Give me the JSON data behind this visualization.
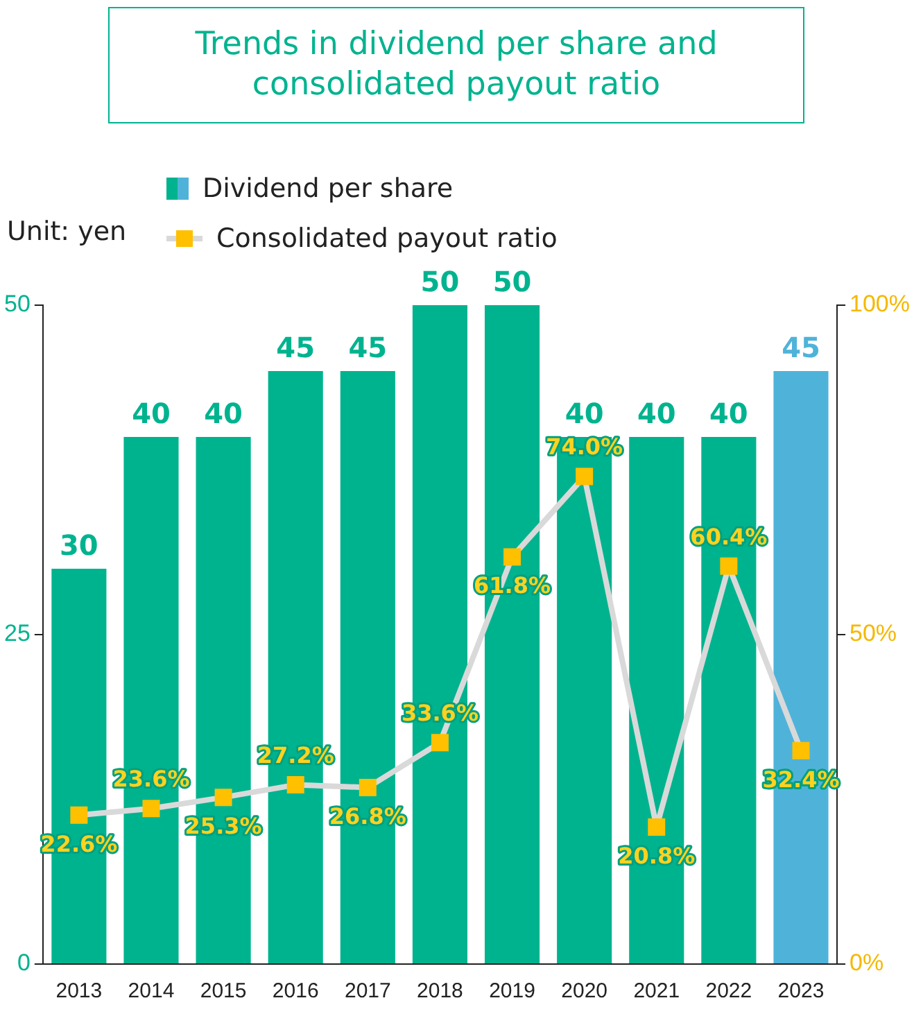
{
  "chart_data": {
    "type": "bar",
    "title": "Trends in dividend per share and consolidated payout ratio",
    "annotations": [
      "Unit: yen"
    ],
    "categories": [
      "2013",
      "2014",
      "2015",
      "2016",
      "2017",
      "2018",
      "2019",
      "2020",
      "2021",
      "2022",
      "2023"
    ],
    "series": [
      {
        "name": "Dividend per share",
        "colors": [
          "#00b38f",
          "#00b38f",
          "#00b38f",
          "#00b38f",
          "#00b38f",
          "#00b38f",
          "#00b38f",
          "#00b38f",
          "#00b38f",
          "#00b38f",
          "#4fb3d9"
        ],
        "values": [
          30,
          40,
          40,
          45,
          45,
          50,
          50,
          40,
          40,
          40,
          45
        ]
      },
      {
        "name": "Consolidated payout ratio",
        "type": "line",
        "axis": "y2",
        "color": "#d9d9d9",
        "values": [
          22.6,
          23.6,
          25.3,
          27.2,
          26.8,
          33.6,
          61.8,
          74.0,
          20.8,
          60.4,
          32.4
        ],
        "value_labels": [
          "22.6%",
          "23.6%",
          "25.3%",
          "27.2%",
          "26.8%",
          "33.6%",
          "61.8%",
          "74.0%",
          "20.8%",
          "60.4%",
          "32.4%"
        ]
      }
    ],
    "data_labels": true,
    "marker": "square",
    "grid": false,
    "legend": "top left",
    "ylim": [
      0,
      50
    ],
    "yticks": [
      0,
      25,
      50
    ],
    "y2lim": [
      0,
      100
    ],
    "y2ticks": [
      {
        "value": 0,
        "label": "0%"
      },
      {
        "value": 50,
        "label": "50%"
      },
      {
        "value": 100,
        "label": "100%"
      }
    ]
  }
}
